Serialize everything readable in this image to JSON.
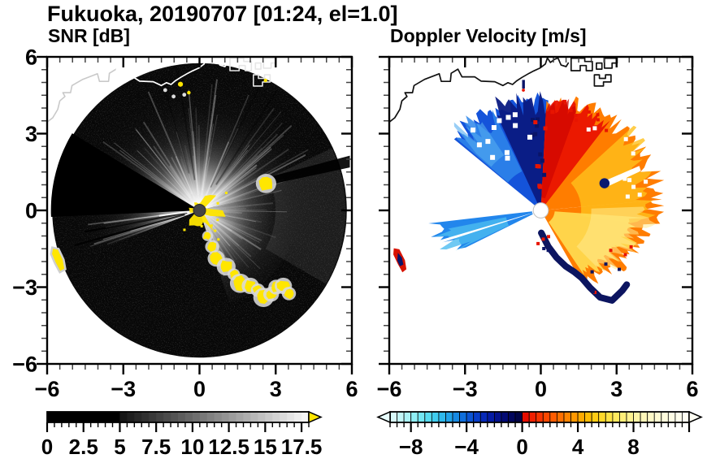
{
  "title": "Fukuoka, 20190707 [01:24, el=1.0]",
  "panels": {
    "snr": {
      "subtitle": "SNR [dB]"
    },
    "doppler": {
      "subtitle": "Doppler Velocity [m/s]"
    }
  },
  "chart_data": {
    "type": "heatmap",
    "description": "Dual-panel Doppler radar PPI display, Fukuoka 2019-07-07 01:24 JST, elevation 1.0 deg. Left: signal-to-noise ratio; right: Doppler velocity. Axes are distance from radar in km.",
    "axes": {
      "xlim": [
        -6,
        6
      ],
      "ylim": [
        -6,
        6
      ],
      "major_step": 3,
      "minor_step": 0.5,
      "xtick_labels": [
        "−6",
        "−3",
        "0",
        "3",
        "6"
      ],
      "ytick_labels": [
        "6",
        "3",
        "0",
        "−3",
        "−6"
      ],
      "grid": false
    },
    "snr_colorbar": {
      "title": "SNR [dB]",
      "min": 0,
      "max": 18,
      "step": 0.5,
      "black_until": 5,
      "gray_range": [
        16,
        250
      ],
      "overflow_color": "#ffe600",
      "tick_labels": [
        "0",
        "2.5",
        "5",
        "7.5",
        "10",
        "12.5",
        "15",
        "17.5"
      ],
      "tick_values": [
        0,
        2.5,
        5,
        7.5,
        10,
        12.5,
        15,
        17.5
      ],
      "minor_step": 0.5,
      "major_step": 2.5
    },
    "vel_colorbar": {
      "title": "Doppler Velocity [m/s]",
      "min": -9.5,
      "max": 12,
      "step": 0.5,
      "tick_labels": [
        "−8",
        "−4",
        "0",
        "4",
        "8"
      ],
      "tick_values": [
        -8,
        -4,
        0,
        4,
        8
      ],
      "minor_step": 0.5,
      "major_step": 4,
      "arrow_left": "#e8fdfd",
      "arrow_right": "#fffef4",
      "neg_colors": [
        "#d8fafa",
        "#c2f6f8",
        "#aaf2f6",
        "#8feef4",
        "#73e6f2",
        "#57dcf0",
        "#40ccee",
        "#2eb8ec",
        "#20a2e8",
        "#1789e2",
        "#106fdc",
        "#0c55d4",
        "#083dc8",
        "#0629b8",
        "#041ba4",
        "#03118c",
        "#020a74",
        "#01065c",
        "#010446"
      ],
      "pos_colors": [
        "#e60c00",
        "#f02000",
        "#f83400",
        "#fc4800",
        "#ff5c00",
        "#ff7000",
        "#ff8400",
        "#ff9800",
        "#ffaa00",
        "#ffbc04",
        "#ffcc14",
        "#ffd82a",
        "#ffe244",
        "#ffe95e",
        "#ffee78",
        "#fff290",
        "#fff5a6",
        "#fff7b8",
        "#fff9c6",
        "#fffbd2",
        "#fffcdc",
        "#fffde4",
        "#fffeec",
        "#fffef2"
      ]
    },
    "coast": {
      "main": [
        [
          -6,
          3.45
        ],
        [
          -5.78,
          3.62
        ],
        [
          -5.58,
          3.95
        ],
        [
          -5.5,
          4.28
        ],
        [
          -5.3,
          4.45
        ],
        [
          -5.38,
          4.6
        ],
        [
          -5.08,
          4.6
        ],
        [
          -5.02,
          4.88
        ],
        [
          -4.6,
          5.12
        ],
        [
          -4.02,
          5.34
        ],
        [
          -3.94,
          5.04
        ],
        [
          -3.58,
          5.04
        ],
        [
          -3.55,
          5.36
        ],
        [
          -3.28,
          5.52
        ],
        [
          -3.12,
          5.22
        ],
        [
          -2.62,
          5.22
        ],
        [
          -2.36,
          5.05
        ],
        [
          -1.82,
          5.03
        ],
        [
          -1.5,
          4.88
        ],
        [
          -1.3,
          4.99
        ],
        [
          -1.12,
          4.92
        ],
        [
          -0.96,
          5.06
        ],
        [
          -0.74,
          5.2
        ],
        [
          -0.46,
          5.36
        ],
        [
          -0.28,
          5.45
        ],
        [
          -0.04,
          5.56
        ],
        [
          0.18,
          5.72
        ],
        [
          0.26,
          5.96
        ],
        [
          0.38,
          5.78
        ],
        [
          0.54,
          5.9
        ],
        [
          0.68,
          5.96
        ],
        [
          0.8,
          5.68
        ],
        [
          1.0,
          5.62
        ],
        [
          1.1,
          5.78
        ]
      ],
      "split_x": -3.28,
      "blocks": [
        [
          [
            1.2,
            5.95
          ],
          [
            1.2,
            5.46
          ],
          [
            1.56,
            5.46
          ],
          [
            1.56,
            5.66
          ],
          [
            1.8,
            5.66
          ],
          [
            1.8,
            5.46
          ],
          [
            2.04,
            5.46
          ],
          [
            2.04,
            5.82
          ],
          [
            1.74,
            5.82
          ],
          [
            1.74,
            5.95
          ]
        ],
        [
          [
            2.12,
            5.3
          ],
          [
            2.12,
            4.86
          ],
          [
            2.48,
            4.86
          ],
          [
            2.48,
            5.02
          ],
          [
            2.78,
            5.02
          ],
          [
            2.78,
            5.3
          ],
          [
            2.56,
            5.3
          ],
          [
            2.56,
            5.16
          ],
          [
            2.32,
            5.16
          ],
          [
            2.32,
            5.3
          ]
        ],
        [
          [
            2.52,
            5.95
          ],
          [
            2.52,
            5.56
          ],
          [
            2.82,
            5.56
          ],
          [
            2.82,
            5.76
          ],
          [
            3.02,
            5.76
          ],
          [
            3.02,
            5.95
          ]
        ],
        [
          [
            2.2,
            5.76
          ],
          [
            2.2,
            5.52
          ],
          [
            2.42,
            5.52
          ],
          [
            2.42,
            5.76
          ]
        ]
      ]
    },
    "snr_panel": {
      "disk": {
        "radius": 5.8,
        "fill": "#070707"
      },
      "yellow": "#ffe600",
      "halo": "#d9d9d9",
      "bright_fans": [
        {
          "az": [
            14,
            149
          ],
          "r0": 0,
          "r1": 5.8,
          "op": 1.0
        },
        {
          "az": [
            -20,
            14
          ],
          "r0": 0,
          "r1": 5.8,
          "op": 0.75
        },
        {
          "az": [
            -72,
            -20
          ],
          "r0": 0,
          "r1": 3.8,
          "op": 0.9
        },
        {
          "az": [
            182,
            201
          ],
          "r0": 0,
          "r1": 5.4,
          "op": 0.95
        }
      ],
      "east_haze": {
        "az": [
          -30,
          25
        ],
        "r0": 3.0,
        "r1": 5.75,
        "color": "#909090",
        "op": 0.16
      },
      "shadow_wedge": {
        "az": [
          149,
          182.5
        ],
        "r": 5.85
      },
      "ene_shadow": {
        "pts": [
          [
            2.82,
            1.02
          ],
          [
            2.88,
            1.34
          ],
          [
            5.92,
            2.14
          ],
          [
            5.92,
            1.68
          ]
        ]
      },
      "dark_rays": [
        {
          "az": 57,
          "r": [
            1.2,
            5.6
          ],
          "w": 2.0,
          "op": 0.35
        },
        {
          "az": 64,
          "r": [
            1.0,
            5.5
          ],
          "w": 1.6,
          "op": 0.3
        },
        {
          "az": 99,
          "r": [
            1.2,
            5.6
          ],
          "w": 1.8,
          "op": 0.35
        },
        {
          "az": 106,
          "r": [
            1.5,
            5.4
          ],
          "w": 1.5,
          "op": 0.3
        },
        {
          "az": 190.5,
          "r": [
            0.5,
            4.6
          ],
          "w": 2.4,
          "op": 0.8
        },
        {
          "az": 195.5,
          "r": [
            0.6,
            5.1
          ],
          "w": 2.2,
          "op": 0.8
        }
      ],
      "white_rays": [
        {
          "az": 187.5,
          "r": [
            0.3,
            1.6
          ],
          "w": 2.0,
          "op": 0.9
        }
      ],
      "streak_sets": [
        {
          "az": [
            16,
            148
          ],
          "n": 55,
          "r2": [
            2.0,
            5.2
          ],
          "seed": 41
        },
        {
          "az": [
            -70,
            14
          ],
          "n": 26,
          "r2": [
            1.4,
            3.5
          ],
          "seed": 42
        },
        {
          "az": [
            183,
            200
          ],
          "n": 12,
          "r2": [
            2.0,
            4.6
          ],
          "seed": 43
        }
      ],
      "clutter_arc": [
        [
          0.32,
          -1.0,
          0.14
        ],
        [
          0.5,
          -1.42,
          0.18
        ],
        [
          0.66,
          -1.88,
          0.22
        ],
        [
          1.05,
          -2.2,
          0.24
        ],
        [
          1.35,
          -2.5,
          0.16
        ],
        [
          1.6,
          -2.85,
          0.26
        ],
        [
          2.0,
          -2.95,
          0.22
        ],
        [
          2.3,
          -3.12,
          0.18
        ],
        [
          2.52,
          -3.4,
          0.26
        ],
        [
          2.82,
          -3.28,
          0.2
        ],
        [
          3.02,
          -3.0,
          0.2
        ],
        [
          3.3,
          -2.95,
          0.22
        ],
        [
          3.52,
          -3.25,
          0.18
        ]
      ],
      "ene_blob": [
        2.62,
        1.05,
        0.26
      ],
      "rim_blob": {
        "pts": [
          [
            -5.8,
            -1.45
          ],
          [
            -5.55,
            -1.5
          ],
          [
            -5.35,
            -1.92
          ],
          [
            -5.28,
            -2.3
          ],
          [
            -5.5,
            -2.42
          ],
          [
            -5.7,
            -2.05
          ],
          [
            -5.85,
            -1.7
          ]
        ]
      },
      "top_specks": [
        [
          -0.75,
          4.93,
          0.1
        ],
        [
          -0.42,
          4.6,
          0.07
        ],
        [
          2.6,
          5.08,
          0.07
        ]
      ],
      "white_specks": [
        [
          -1.35,
          4.7
        ],
        [
          -1.02,
          4.45
        ],
        [
          -0.6,
          4.52
        ]
      ],
      "center_star": {
        "seed": 44,
        "spike_max": 0.9
      },
      "center_dot": {
        "r": 0.24,
        "fill": "#454545"
      }
    },
    "vel_panel": {
      "fans": [
        {
          "az": [
            86,
            141
          ],
          "r0": 0.25,
          "r1": [
            4.3,
            4.35
          ],
          "jag": 0.1,
          "color": "#1453da",
          "op": 1,
          "seed": 11
        },
        {
          "az": [
            86,
            115
          ],
          "r0": 0.25,
          "r1": [
            4.2,
            4.3
          ],
          "jag": 0.12,
          "color": "#0a1a82",
          "op": 0.95,
          "seed": 12
        },
        {
          "az": [
            116,
            140
          ],
          "r0": 1.7,
          "r1": [
            4.3,
            4.2
          ],
          "jag": 0.16,
          "color": "#2e86ea",
          "op": 0.85,
          "seed": 13
        },
        {
          "az": [
            124,
            139
          ],
          "r0": 2.6,
          "r1": [
            4.25,
            4.1
          ],
          "jag": 0.2,
          "color": "#55aef0",
          "op": 0.6,
          "seed": 14
        },
        {
          "az": [
            -60,
            5
          ],
          "r0": 0.3,
          "r1": [
            3.2,
            4.7
          ],
          "jag": 0.09,
          "color": "#ff7d00",
          "op": 1,
          "seed": 15
        },
        {
          "az": [
            5,
            87
          ],
          "r0": 0.28,
          "r1": [
            4.7,
            4.3
          ],
          "jag": 0.09,
          "color": "#ff7d00",
          "op": 1,
          "seed": 16
        },
        {
          "az": [
            52,
            87
          ],
          "r0": 0.3,
          "r1": [
            4.3,
            4.25
          ],
          "jag": 0.1,
          "color": "#ea1400",
          "op": 0.95,
          "seed": 17
        },
        {
          "az": [
            70,
            87
          ],
          "r0": 0.5,
          "r1": [
            4.2,
            4.2
          ],
          "jag": 0.12,
          "color": "#d00600",
          "op": 0.75,
          "seed": 18
        },
        {
          "az": [
            -8,
            42
          ],
          "r0": 1.6,
          "r1": [
            4.0,
            4.55
          ],
          "jag": 0.12,
          "color": "#ffc01c",
          "op": 0.8,
          "seed": 19
        },
        {
          "az": [
            -56,
            -4
          ],
          "r0": 0.55,
          "r1": [
            2.9,
            3.9
          ],
          "jag": 0.12,
          "color": "#ffd94e",
          "op": 0.95,
          "seed": 20
        },
        {
          "az": [
            -45,
            2
          ],
          "r0": 2.0,
          "r1": [
            3.2,
            4.3
          ],
          "jag": 0.15,
          "color": "#ffea90",
          "op": 0.55,
          "seed": 21
        },
        {
          "az": [
            186.5,
            206
          ],
          "r0": 0.35,
          "r1": [
            4.35,
            3.6
          ],
          "jag": 0.12,
          "color": "#2286ec",
          "op": 1,
          "seed": 22
        },
        {
          "az": [
            191,
            205
          ],
          "r0": 1.4,
          "r1": [
            4.3,
            3.5
          ],
          "jag": 0.16,
          "color": "#4cbcf0",
          "op": 0.8,
          "seed": 23
        }
      ],
      "white_gap": {
        "az": [
          196.2,
          197.8
        ],
        "r0": 0.35,
        "r1": 4.4
      },
      "navy_band": {
        "points": [
          [
            0.02,
            -0.88
          ],
          [
            0.3,
            -1.42
          ],
          [
            0.62,
            -1.84
          ],
          [
            0.98,
            -2.18
          ],
          [
            1.32,
            -2.4
          ],
          [
            1.62,
            -2.64
          ],
          [
            1.95,
            -3.02
          ],
          [
            2.35,
            -3.4
          ],
          [
            2.82,
            -3.52
          ],
          [
            3.22,
            -3.14
          ],
          [
            3.4,
            -2.9
          ]
        ],
        "width": 0.26,
        "color": "#0c1560"
      },
      "scatters": [
        {
          "n": 16,
          "az": [
            82,
            97
          ],
          "r": [
            0.8,
            4.1
          ],
          "colors": [
            "#0a1468",
            "#e81400"
          ],
          "size": 5,
          "seed": 31
        },
        {
          "n": 10,
          "az": [
            50,
            85
          ],
          "r": [
            3.5,
            4.5
          ],
          "colors": [
            "#e81400"
          ],
          "size": 4,
          "seed": 32
        },
        {
          "n": 12,
          "az": [
            95,
            140
          ],
          "r": [
            2.4,
            4.2
          ],
          "colors": [
            "#ffffff"
          ],
          "size": 6,
          "seed": 33
        },
        {
          "n": 10,
          "az": [
            8,
            60
          ],
          "r": [
            3.3,
            4.6
          ],
          "colors": [
            "#ffffff"
          ],
          "size": 5,
          "seed": 34
        },
        {
          "n": 6,
          "az": [
            -95,
            -70
          ],
          "r": [
            0.9,
            1.7
          ],
          "colors": [
            "#e81400",
            "#0a1468"
          ],
          "size": 4,
          "seed": 35
        },
        {
          "n": 8,
          "az": [
            -60,
            -20
          ],
          "r": [
            3.0,
            3.9
          ],
          "colors": [
            "#e81400",
            "#0c1560"
          ],
          "size": 4,
          "seed": 36
        }
      ],
      "polygons": [
        {
          "pts": [
            [
              -5.82,
              -1.48
            ],
            [
              -5.6,
              -1.52
            ],
            [
              -5.38,
              -1.95
            ],
            [
              -5.32,
              -2.3
            ],
            [
              -5.48,
              -2.42
            ],
            [
              -5.66,
              -2.1
            ],
            [
              -5.84,
              -1.72
            ]
          ],
          "color": "#d81200"
        },
        {
          "pts": [
            [
              -5.66,
              -1.66
            ],
            [
              -5.5,
              -1.84
            ],
            [
              -5.44,
              -2.12
            ],
            [
              -5.58,
              -2.18
            ],
            [
              -5.68,
              -1.96
            ]
          ],
          "color": "#0a1468"
        },
        {
          "pts": [
            [
              2.6,
              1.18
            ],
            [
              3.9,
              1.74
            ],
            [
              3.96,
              1.54
            ],
            [
              2.7,
              0.96
            ]
          ],
          "color": "#ffffff"
        },
        {
          "pts": [
            [
              -0.74,
              5.1
            ],
            [
              -0.63,
              5.1
            ],
            [
              -0.63,
              4.76
            ],
            [
              -0.74,
              4.76
            ]
          ],
          "color": "#0a1468"
        }
      ],
      "dots": [
        {
          "x": 2.52,
          "y": 1.06,
          "r": 0.2,
          "color": "#0a1a70"
        },
        {
          "x": -0.69,
          "y": 4.7,
          "r": 0.06,
          "color": "#e81400"
        }
      ],
      "center_dot": {
        "r": 0.3,
        "fill": "#ffffff",
        "stroke": "#c0c0c0"
      }
    }
  }
}
